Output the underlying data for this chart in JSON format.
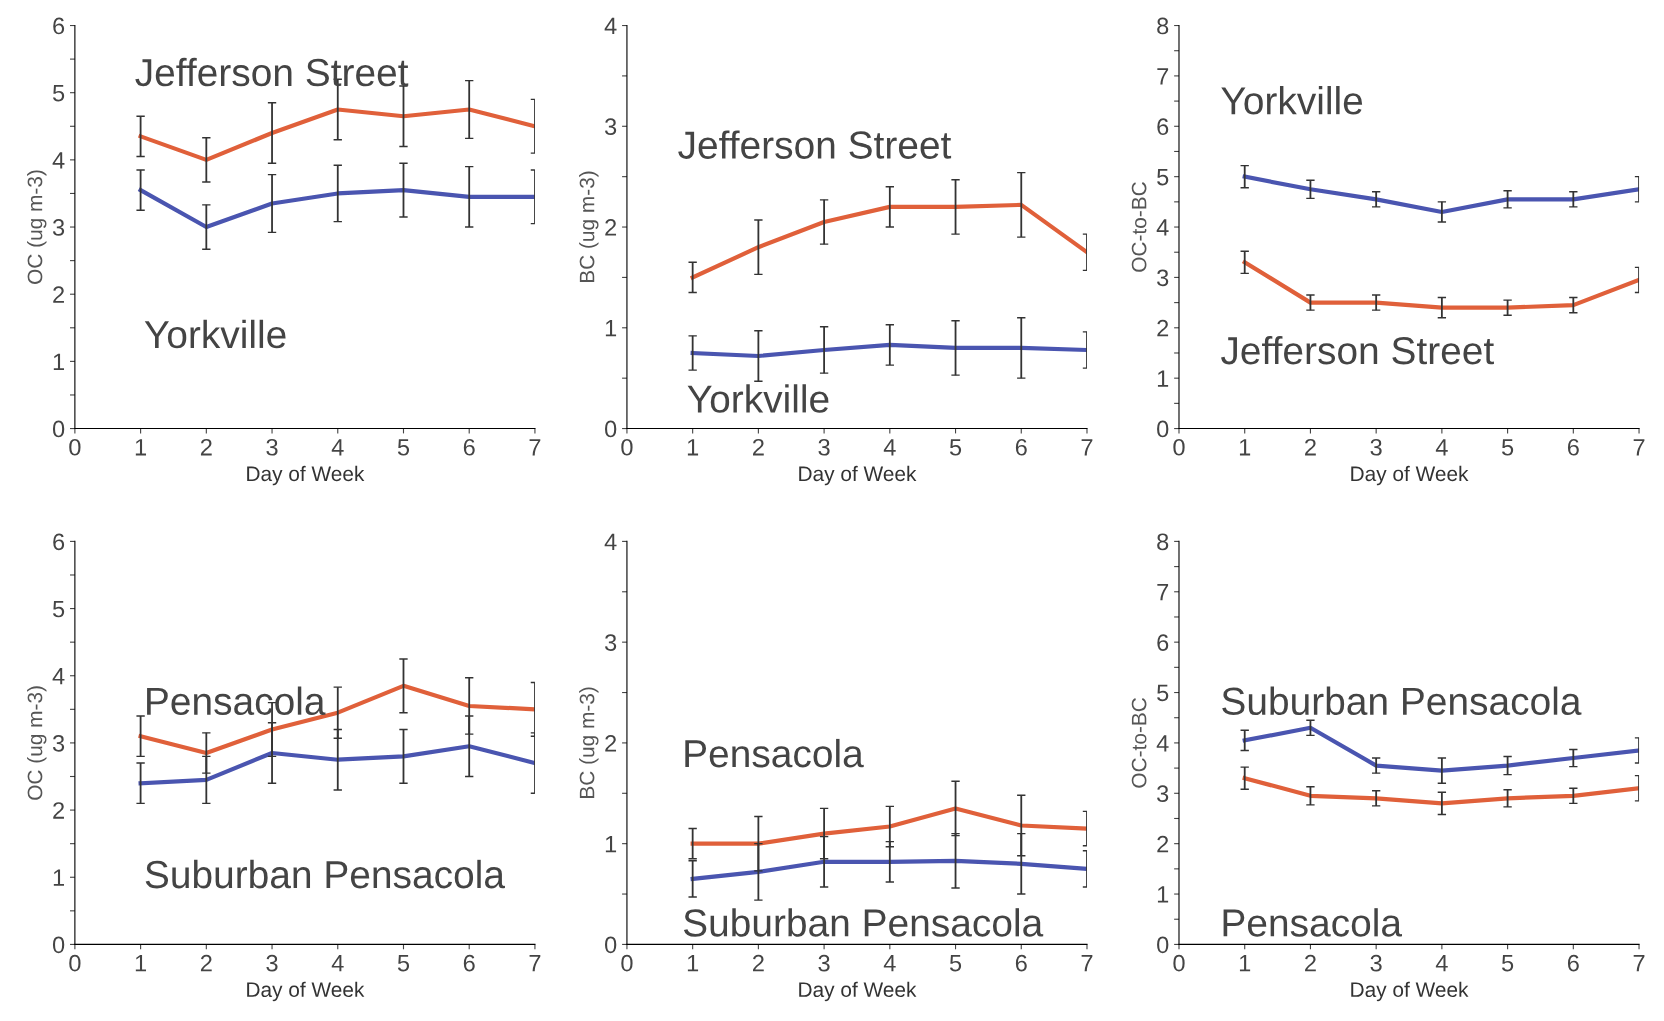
{
  "chart_data": [
    {
      "type": "line",
      "ylabel": "OC (ug m-3)",
      "xlabel": "Day of Week",
      "x": [
        1,
        2,
        3,
        4,
        5,
        6,
        7
      ],
      "xlim": [
        0,
        7
      ],
      "xticks": [
        0,
        1,
        2,
        3,
        4,
        5,
        6,
        7
      ],
      "ylim": [
        0,
        6
      ],
      "yticks": [
        0,
        {
          "value": 0.5,
          "label": null
        },
        1,
        {
          "value": 1.5,
          "label": null
        },
        2,
        {
          "value": 2.5,
          "label": null
        },
        3,
        {
          "value": 3.5,
          "label": null
        },
        4,
        {
          "value": 4.5,
          "label": null
        },
        5,
        {
          "value": 5.5,
          "label": null
        },
        6
      ],
      "grid": false,
      "legend": false,
      "marker": "none",
      "line_style": "solid",
      "series": [
        {
          "name": "Jefferson Street",
          "color": "#e0603a",
          "values": [
            4.35,
            4.0,
            4.4,
            4.75,
            4.65,
            4.75,
            4.5
          ],
          "errors": [
            0.3,
            0.33,
            0.45,
            0.45,
            0.45,
            0.43,
            0.4
          ]
        },
        {
          "name": "Yorkville",
          "color": "#4a55b0",
          "values": [
            3.55,
            3.0,
            3.35,
            3.5,
            3.55,
            3.45,
            3.45
          ],
          "errors": [
            0.3,
            0.33,
            0.43,
            0.42,
            0.4,
            0.45,
            0.4
          ]
        }
      ]
    },
    {
      "type": "line",
      "ylabel": "BC (ug m-3)",
      "xlabel": "Day of Week",
      "x": [
        1,
        2,
        3,
        4,
        5,
        6,
        7
      ],
      "xlim": [
        0,
        7
      ],
      "xticks": [
        0,
        1,
        2,
        3,
        4,
        5,
        6,
        7
      ],
      "ylim": [
        0,
        4
      ],
      "yticks": [
        0,
        {
          "value": 0.5,
          "label": null
        },
        1,
        {
          "value": 1.5,
          "label": null
        },
        2,
        {
          "value": 2.5,
          "label": null
        },
        3,
        {
          "value": 3.5,
          "label": null
        },
        4
      ],
      "grid": false,
      "legend": false,
      "marker": "none",
      "line_style": "solid",
      "series": [
        {
          "name": "Jefferson Street",
          "color": "#e0603a",
          "values": [
            1.5,
            1.8,
            2.05,
            2.2,
            2.2,
            2.22,
            1.75
          ],
          "errors": [
            0.15,
            0.27,
            0.22,
            0.2,
            0.27,
            0.32,
            0.18
          ]
        },
        {
          "name": "Yorkville",
          "color": "#4a55b0",
          "values": [
            0.75,
            0.72,
            0.78,
            0.83,
            0.8,
            0.8,
            0.78
          ],
          "errors": [
            0.17,
            0.25,
            0.23,
            0.2,
            0.27,
            0.3,
            0.18
          ]
        }
      ]
    },
    {
      "type": "line",
      "ylabel": "OC-to-BC",
      "xlabel": "Day of Week",
      "x": [
        1,
        2,
        3,
        4,
        5,
        6,
        7
      ],
      "xlim": [
        0,
        7
      ],
      "xticks": [
        0,
        1,
        2,
        3,
        4,
        5,
        6,
        7
      ],
      "ylim": [
        0,
        8
      ],
      "yticks": [
        0,
        {
          "value": 0.5,
          "label": null
        },
        1,
        {
          "value": 1.5,
          "label": null
        },
        2,
        {
          "value": 2.5,
          "label": null
        },
        3,
        {
          "value": 3.5,
          "label": null
        },
        4,
        {
          "value": 4.5,
          "label": null
        },
        5,
        {
          "value": 5.5,
          "label": null
        },
        6,
        {
          "value": 6.5,
          "label": null
        },
        7,
        {
          "value": 7.5,
          "label": null
        },
        8
      ],
      "grid": false,
      "legend": false,
      "marker": "none",
      "line_style": "solid",
      "series": [
        {
          "name": "Yorkville",
          "color": "#4a55b0",
          "values": [
            5.0,
            4.75,
            4.55,
            4.3,
            4.55,
            4.55,
            4.75
          ],
          "errors": [
            0.22,
            0.18,
            0.15,
            0.2,
            0.17,
            0.15,
            0.25
          ]
        },
        {
          "name": "Jefferson Street",
          "color": "#e0603a",
          "values": [
            3.3,
            2.5,
            2.5,
            2.4,
            2.4,
            2.45,
            2.95
          ],
          "errors": [
            0.22,
            0.15,
            0.15,
            0.2,
            0.15,
            0.15,
            0.25
          ]
        }
      ]
    },
    {
      "type": "line",
      "ylabel": "OC (ug m-3)",
      "xlabel": "Day of Week",
      "x": [
        1,
        2,
        3,
        4,
        5,
        6,
        7
      ],
      "xlim": [
        0,
        7
      ],
      "xticks": [
        0,
        1,
        2,
        3,
        4,
        5,
        6,
        7
      ],
      "ylim": [
        0,
        6
      ],
      "yticks": [
        0,
        {
          "value": 0.5,
          "label": null
        },
        1,
        {
          "value": 1.5,
          "label": null
        },
        2,
        {
          "value": 2.5,
          "label": null
        },
        3,
        {
          "value": 3.5,
          "label": null
        },
        4,
        {
          "value": 4.5,
          "label": null
        },
        5,
        {
          "value": 5.5,
          "label": null
        },
        6
      ],
      "grid": false,
      "legend": false,
      "marker": "none",
      "line_style": "solid",
      "series": [
        {
          "name": "Pensacola",
          "color": "#e0603a",
          "values": [
            3.1,
            2.85,
            3.2,
            3.45,
            3.85,
            3.55,
            3.5
          ],
          "errors": [
            0.3,
            0.3,
            0.4,
            0.38,
            0.4,
            0.42,
            0.4
          ]
        },
        {
          "name": "Suburban Pensacola",
          "color": "#4a55b0",
          "values": [
            2.4,
            2.45,
            2.85,
            2.75,
            2.8,
            2.95,
            2.7
          ],
          "errors": [
            0.3,
            0.35,
            0.45,
            0.45,
            0.4,
            0.45,
            0.45
          ]
        }
      ]
    },
    {
      "type": "line",
      "ylabel": "BC (ug m-3)",
      "xlabel": "Day of Week",
      "x": [
        1,
        2,
        3,
        4,
        5,
        6,
        7
      ],
      "xlim": [
        0,
        7
      ],
      "xticks": [
        0,
        1,
        2,
        3,
        4,
        5,
        6,
        7
      ],
      "ylim": [
        0,
        4
      ],
      "yticks": [
        0,
        {
          "value": 0.5,
          "label": null
        },
        1,
        {
          "value": 1.5,
          "label": null
        },
        2,
        {
          "value": 2.5,
          "label": null
        },
        3,
        {
          "value": 3.5,
          "label": null
        },
        4
      ],
      "grid": false,
      "legend": false,
      "marker": "none",
      "line_style": "solid",
      "series": [
        {
          "name": "Pensacola",
          "color": "#e0603a",
          "values": [
            1.0,
            1.0,
            1.1,
            1.17,
            1.35,
            1.18,
            1.15
          ],
          "errors": [
            0.15,
            0.27,
            0.25,
            0.2,
            0.27,
            0.3,
            0.17
          ]
        },
        {
          "name": "Suburban Pensacola",
          "color": "#4a55b0",
          "values": [
            0.65,
            0.72,
            0.82,
            0.82,
            0.83,
            0.8,
            0.75
          ],
          "errors": [
            0.18,
            0.28,
            0.25,
            0.2,
            0.27,
            0.3,
            0.18
          ]
        }
      ]
    },
    {
      "type": "line",
      "ylabel": "OC-to-BC",
      "xlabel": "Day of Week",
      "x": [
        1,
        2,
        3,
        4,
        5,
        6,
        7
      ],
      "xlim": [
        0,
        7
      ],
      "xticks": [
        0,
        1,
        2,
        3,
        4,
        5,
        6,
        7
      ],
      "ylim": [
        0,
        8
      ],
      "yticks": [
        0,
        {
          "value": 0.5,
          "label": null
        },
        1,
        {
          "value": 1.5,
          "label": null
        },
        2,
        {
          "value": 2.5,
          "label": null
        },
        3,
        {
          "value": 3.5,
          "label": null
        },
        4,
        {
          "value": 4.5,
          "label": null
        },
        5,
        {
          "value": 5.5,
          "label": null
        },
        6,
        {
          "value": 6.5,
          "label": null
        },
        7,
        {
          "value": 7.5,
          "label": null
        },
        8
      ],
      "grid": false,
      "legend": false,
      "marker": "none",
      "line_style": "solid",
      "series": [
        {
          "name": "Suburban Pensacola",
          "color": "#4a55b0",
          "values": [
            4.05,
            4.3,
            3.55,
            3.45,
            3.55,
            3.7,
            3.85
          ],
          "errors": [
            0.2,
            0.15,
            0.15,
            0.25,
            0.18,
            0.17,
            0.25
          ]
        },
        {
          "name": "Pensacola",
          "color": "#e0603a",
          "values": [
            3.3,
            2.95,
            2.9,
            2.8,
            2.9,
            2.95,
            3.1
          ],
          "errors": [
            0.22,
            0.18,
            0.15,
            0.22,
            0.17,
            0.15,
            0.25
          ]
        }
      ]
    }
  ]
}
